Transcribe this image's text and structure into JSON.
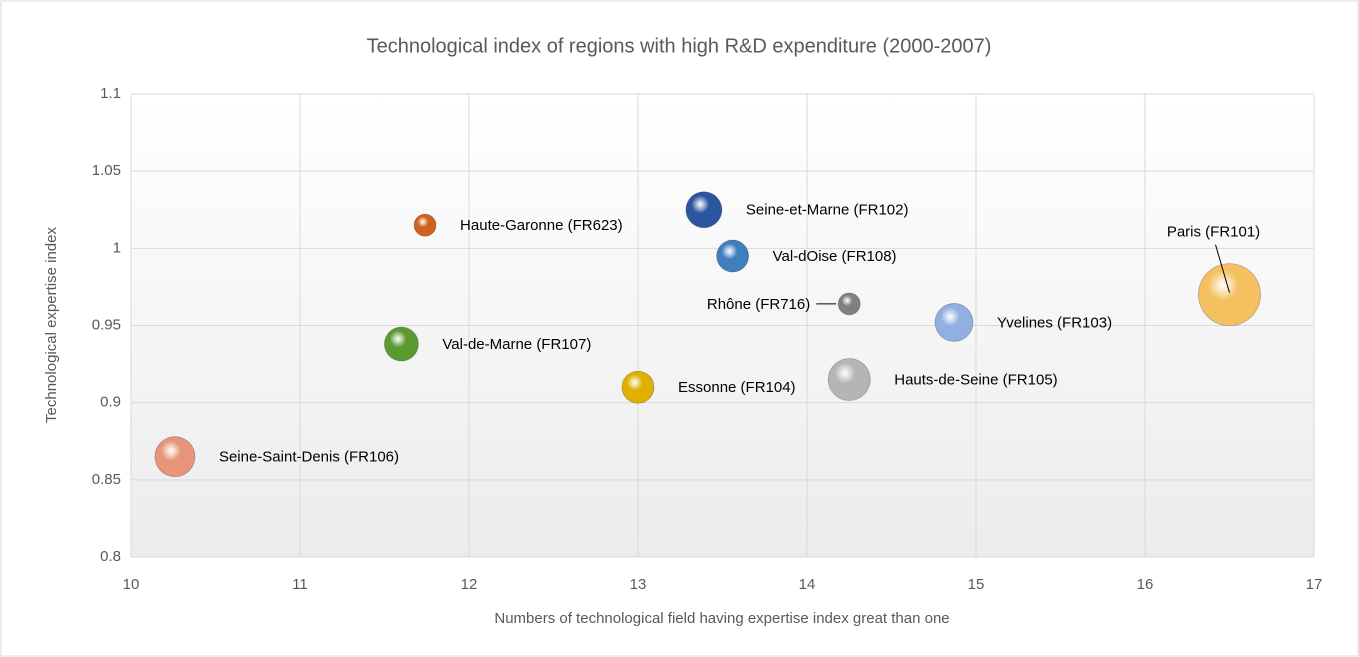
{
  "chart_data": {
    "type": "bubble",
    "title": "Technological index of regions with high R&D expenditure (2000-2007)",
    "xlabel": "Numbers of technological field having expertise index great than one",
    "ylabel": "Technological expertise index",
    "labels": [
      "Seine-Saint-Denis (FR106)",
      "Val-de-Marne (FR107)",
      "Haute-Garonne (FR623)",
      "Essonne (FR104)",
      "Seine-et-Marne (FR102)",
      "Val-dOise (FR108)",
      "Rhône (FR716)",
      "Hauts-de-Seine (FR105)",
      "Yvelines (FR103)",
      "Paris (FR101)"
    ],
    "x": [
      10.26,
      11.6,
      11.74,
      13.0,
      13.39,
      13.56,
      14.25,
      14.25,
      14.87,
      16.5
    ],
    "y": [
      0.865,
      0.938,
      1.015,
      0.91,
      1.025,
      0.995,
      0.964,
      0.915,
      0.952,
      0.97
    ],
    "sizes": [
      400,
      289,
      121,
      256,
      324,
      256,
      121,
      441,
      361,
      961
    ],
    "colors": [
      "#e8957a",
      "#5a9a30",
      "#d0621e",
      "#e0b000",
      "#2c55a0",
      "#3f7fc0",
      "#808080",
      "#b5b5b5",
      "#8fb0e0",
      "#f5c060"
    ],
    "xlim": [
      10,
      17
    ],
    "ylim": [
      0.8,
      1.1
    ],
    "xticks": [
      10,
      11,
      12,
      13,
      14,
      15,
      16,
      17
    ],
    "yticks": [
      0.8,
      0.85,
      0.9,
      0.95,
      1,
      1.05,
      1.1
    ],
    "grid": true
  }
}
